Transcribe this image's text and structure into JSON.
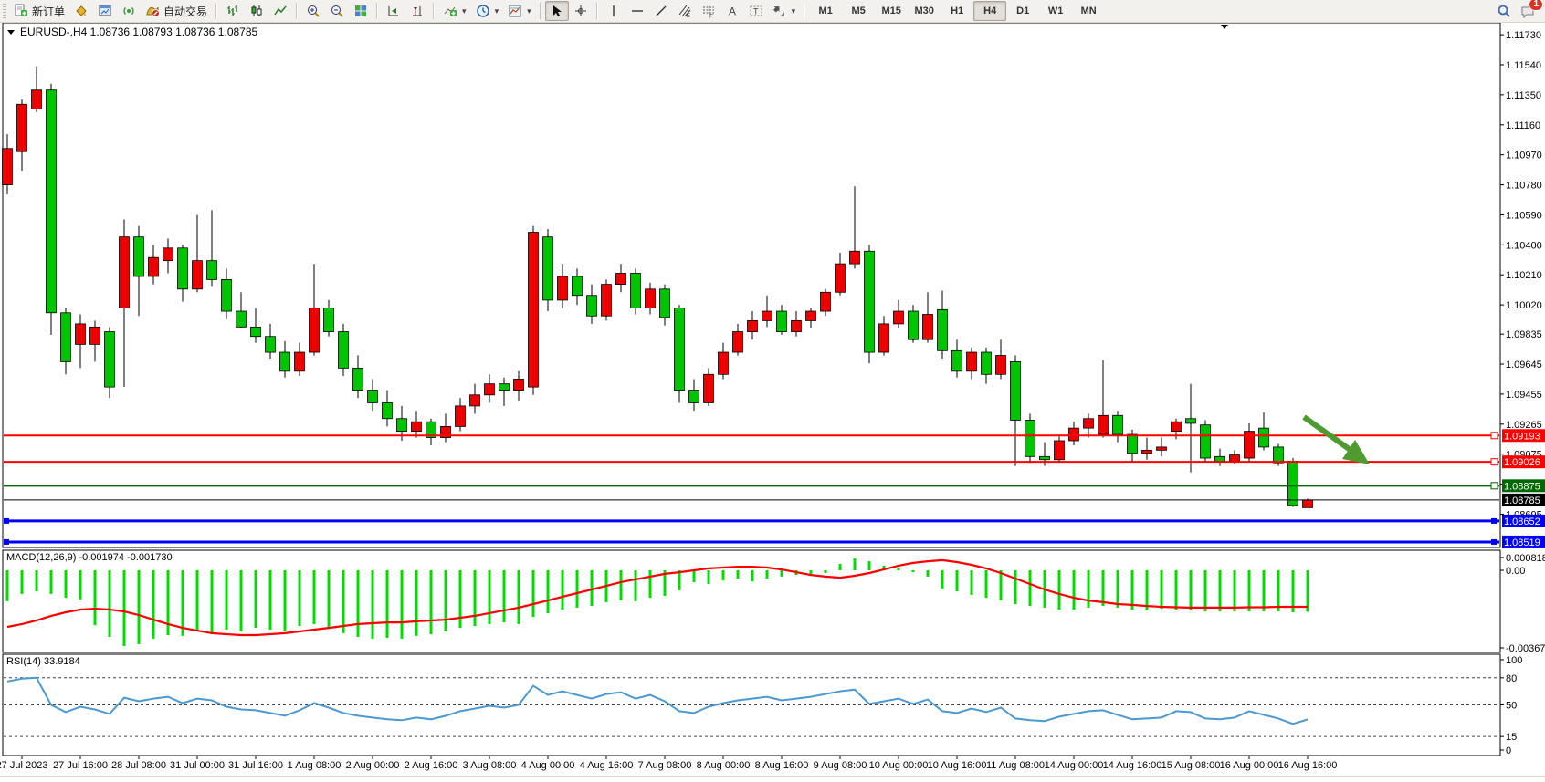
{
  "toolbar": {
    "new_order_label": "新订单",
    "auto_trading_label": "自动交易",
    "timeframes": [
      "M1",
      "M5",
      "M15",
      "M30",
      "H1",
      "H4",
      "D1",
      "W1",
      "MN"
    ],
    "active_timeframe": "H4",
    "notification_count": "1"
  },
  "chart": {
    "symbol_period": "EURUSD-,H4",
    "quote_ohlc": "1.08736 1.08793 1.08736 1.08785",
    "colors": {
      "bull_body": "#ee0000",
      "bear_body": "#00c400",
      "wick": "#000000",
      "resistance_line": "#ff0000",
      "support_line": "#006600",
      "current_price_line": "#000000",
      "target_line": "#0000ff",
      "macd_hist": "#00dd00",
      "macd_signal": "#ff0000",
      "rsi_line": "#4b99d2",
      "arrow": "#4e9b30",
      "badge_text": "#ffffff"
    },
    "price_axis_ticks": [
      "1.11730",
      "1.11540",
      "1.11350",
      "1.11160",
      "1.10970",
      "1.10780",
      "1.10590",
      "1.10400",
      "1.10210",
      "1.10020",
      "1.09835",
      "1.09645",
      "1.09455",
      "1.09265",
      "1.09075",
      "1.08885",
      "1.08695"
    ],
    "h_lines": [
      {
        "price": 1.09193,
        "label": "1.09193",
        "color": "#ff0000",
        "width": 2,
        "handles": "right"
      },
      {
        "price": 1.09026,
        "label": "1.09026",
        "color": "#ff0000",
        "width": 2,
        "handles": "right"
      },
      {
        "price": 1.08875,
        "label": "1.08875",
        "color": "#006600",
        "width": 2,
        "handles": "right"
      },
      {
        "price": 1.08785,
        "label": "1.08785",
        "color": "#000000",
        "width": 1,
        "handles": "none"
      },
      {
        "price": 1.08652,
        "label": "1.08652",
        "color": "#0000ff",
        "width": 3,
        "handles": "both"
      },
      {
        "price": 1.08519,
        "label": "1.08519",
        "color": "#0000ff",
        "width": 3,
        "handles": "both"
      }
    ],
    "candles": [
      [
        1.1078,
        1.111,
        1.1072,
        1.1101
      ],
      [
        1.1099,
        1.1132,
        1.1087,
        1.1129
      ],
      [
        1.1126,
        1.1153,
        1.1124,
        1.1138
      ],
      [
        1.1138,
        1.1142,
        1.0983,
        1.0997
      ],
      [
        1.0997,
        1.1,
        1.0958,
        1.0966
      ],
      [
        1.0977,
        1.0996,
        1.0962,
        1.099
      ],
      [
        1.0977,
        1.0992,
        1.0966,
        1.0988
      ],
      [
        1.0985,
        1.0988,
        1.0943,
        1.095
      ],
      [
        1.1,
        1.1056,
        1.095,
        1.1045
      ],
      [
        1.1045,
        1.1052,
        1.0995,
        1.102
      ],
      [
        1.102,
        1.104,
        1.1015,
        1.1032
      ],
      [
        1.103,
        1.1044,
        1.1022,
        1.1038
      ],
      [
        1.1038,
        1.104,
        1.1004,
        1.1012
      ],
      [
        1.1012,
        1.1059,
        1.101,
        1.103
      ],
      [
        1.103,
        1.1062,
        1.1014,
        1.1018
      ],
      [
        1.1018,
        1.1025,
        1.0993,
        1.0998
      ],
      [
        1.0998,
        1.101,
        1.0987,
        1.0988
      ],
      [
        1.0988,
        1.1,
        1.0978,
        1.0982
      ],
      [
        1.0982,
        1.099,
        1.0968,
        1.0972
      ],
      [
        1.0972,
        1.0979,
        1.0956,
        1.096
      ],
      [
        1.096,
        1.0978,
        1.0957,
        1.0972
      ],
      [
        1.0972,
        1.1028,
        1.097,
        1.1
      ],
      [
        1.1,
        1.1005,
        1.0982,
        1.0985
      ],
      [
        1.0985,
        1.099,
        1.0957,
        1.0962
      ],
      [
        1.0962,
        1.097,
        1.0943,
        1.0948
      ],
      [
        1.0948,
        1.0955,
        1.0935,
        1.094
      ],
      [
        1.094,
        1.0948,
        1.0925,
        1.093
      ],
      [
        1.093,
        1.0938,
        1.0916,
        1.0922
      ],
      [
        1.0922,
        1.0935,
        1.0918,
        1.0928
      ],
      [
        1.0928,
        1.093,
        1.0913,
        1.0918
      ],
      [
        1.0918,
        1.0933,
        1.0915,
        1.0925
      ],
      [
        1.0925,
        1.0943,
        1.0922,
        1.0938
      ],
      [
        1.0938,
        1.0952,
        1.0933,
        1.0945
      ],
      [
        1.0945,
        1.0958,
        1.094,
        1.0952
      ],
      [
        1.0952,
        1.0956,
        1.0938,
        1.0948
      ],
      [
        1.0948,
        1.096,
        1.0941,
        1.0955
      ],
      [
        1.095,
        1.1052,
        1.0945,
        1.1048
      ],
      [
        1.1045,
        1.105,
        1.0998,
        1.1005
      ],
      [
        1.1005,
        1.1028,
        1.1,
        1.102
      ],
      [
        1.102,
        1.1025,
        1.1002,
        1.1008
      ],
      [
        1.1008,
        1.1015,
        1.099,
        1.0995
      ],
      [
        1.0995,
        1.1018,
        1.0992,
        1.1015
      ],
      [
        1.1015,
        1.1028,
        1.101,
        1.1022
      ],
      [
        1.1022,
        1.1025,
        1.0996,
        1.1
      ],
      [
        1.1,
        1.1016,
        1.0996,
        1.1012
      ],
      [
        1.1012,
        1.1015,
        1.0989,
        1.0994
      ],
      [
        1.1,
        1.1002,
        1.094,
        1.0948
      ],
      [
        1.0948,
        1.0955,
        1.0935,
        1.094
      ],
      [
        1.094,
        1.0962,
        1.0938,
        1.0958
      ],
      [
        1.0958,
        1.0978,
        1.0955,
        1.0972
      ],
      [
        1.0972,
        1.099,
        1.097,
        1.0985
      ],
      [
        1.0985,
        1.0998,
        1.098,
        1.0992
      ],
      [
        1.0992,
        1.1008,
        1.0988,
        1.0998
      ],
      [
        1.0998,
        1.1002,
        1.0983,
        1.0985
      ],
      [
        1.0985,
        1.0998,
        1.0982,
        1.0992
      ],
      [
        1.0992,
        1.1,
        1.0987,
        1.0998
      ],
      [
        1.0998,
        1.1012,
        1.0995,
        1.101
      ],
      [
        1.101,
        1.1035,
        1.1008,
        1.1028
      ],
      [
        1.1028,
        1.1077,
        1.1025,
        1.1036
      ],
      [
        1.1036,
        1.104,
        1.0965,
        1.0972
      ],
      [
        1.0972,
        1.0995,
        1.097,
        1.099
      ],
      [
        1.099,
        1.1005,
        1.0987,
        1.0998
      ],
      [
        1.0998,
        1.1002,
        1.0978,
        1.098
      ],
      [
        1.098,
        1.101,
        1.0978,
        1.0996
      ],
      [
        1.0999,
        1.1011,
        1.0968,
        1.0973
      ],
      [
        1.0973,
        1.098,
        1.0956,
        1.096
      ],
      [
        1.096,
        1.0975,
        1.0955,
        1.0972
      ],
      [
        1.0972,
        1.0975,
        1.0952,
        1.0958
      ],
      [
        1.0958,
        1.098,
        1.0955,
        1.097
      ],
      [
        1.0966,
        1.097,
        1.09,
        1.0929
      ],
      [
        1.0929,
        1.0933,
        1.0902,
        1.0906
      ],
      [
        1.0906,
        1.0915,
        1.09,
        1.0904
      ],
      [
        1.0904,
        1.092,
        1.0902,
        1.0916
      ],
      [
        1.0916,
        1.0928,
        1.0913,
        1.0924
      ],
      [
        1.0924,
        1.0933,
        1.0918,
        1.093
      ],
      [
        1.092,
        1.0967,
        1.0918,
        1.0932
      ],
      [
        1.0932,
        1.0935,
        1.0915,
        1.092
      ],
      [
        1.092,
        1.0923,
        1.0903,
        1.0908
      ],
      [
        1.0908,
        1.0918,
        1.0904,
        1.091
      ],
      [
        1.091,
        1.0918,
        1.0906,
        1.0912
      ],
      [
        1.0922,
        1.093,
        1.0917,
        1.0928
      ],
      [
        1.093,
        1.0952,
        1.0896,
        1.0927
      ],
      [
        1.0926,
        1.0929,
        1.0903,
        1.0905
      ],
      [
        1.0906,
        1.0911,
        1.09,
        1.0903
      ],
      [
        1.0903,
        1.091,
        1.0901,
        1.0907
      ],
      [
        1.0905,
        1.0927,
        1.0903,
        1.0922
      ],
      [
        1.0924,
        1.0934,
        1.091,
        1.0912
      ],
      [
        1.0912,
        1.0914,
        1.09,
        1.0902
      ],
      [
        1.0903,
        1.0905,
        1.0874,
        1.0875
      ],
      [
        1.08736,
        1.08793,
        1.08736,
        1.08785
      ]
    ]
  },
  "macd": {
    "label": "MACD(12,26,9)",
    "values_text": "-0.001974 -0.001730",
    "axis_ticks": [
      {
        "label": "0.000818",
        "value": 0.000818
      },
      {
        "label": "0.00",
        "value": 0.0
      },
      {
        "label": "-0.003677",
        "value": -0.003677
      }
    ],
    "hist": [
      -0.00147,
      -0.00112,
      -0.001,
      -0.00112,
      -0.0013,
      -0.00138,
      -0.0026,
      -0.00316,
      -0.00359,
      -0.0035,
      -0.00324,
      -0.00307,
      -0.00311,
      -0.0029,
      -0.00298,
      -0.00281,
      -0.0029,
      -0.00273,
      -0.00281,
      -0.0029,
      -0.00264,
      -0.00255,
      -0.00273,
      -0.00298,
      -0.00316,
      -0.00324,
      -0.0032,
      -0.00324,
      -0.00311,
      -0.00303,
      -0.0029,
      -0.00273,
      -0.00264,
      -0.00255,
      -0.00247,
      -0.00255,
      -0.00221,
      -0.00203,
      -0.00186,
      -0.00177,
      -0.00169,
      -0.00151,
      -0.00143,
      -0.00147,
      -0.0013,
      -0.00121,
      -0.00095,
      -0.00056,
      -0.00065,
      -0.00048,
      -0.00039,
      -0.00052,
      -0.00039,
      -0.0003,
      -0.00022,
      -0.00026,
      -0.00013,
      0.0003,
      0.00056,
      0.00043,
      0.00022,
      0.00013,
      -9e-05,
      -0.0003,
      -0.00087,
      -0.001,
      -0.00117,
      -0.0013,
      -0.00143,
      -0.0016,
      -0.00169,
      -0.00177,
      -0.00186,
      -0.00186,
      -0.00177,
      -0.00169,
      -0.00177,
      -0.00186,
      -0.00186,
      -0.00182,
      -0.00186,
      -0.0019,
      -0.00195,
      -0.00195,
      -0.00195,
      -0.00195,
      -0.00195,
      -0.00195,
      -0.00199,
      -0.00197
    ],
    "signal": [
      -0.00268,
      -0.00255,
      -0.00238,
      -0.00216,
      -0.00199,
      -0.00186,
      -0.00182,
      -0.00186,
      -0.00195,
      -0.00212,
      -0.00234,
      -0.00255,
      -0.00273,
      -0.00286,
      -0.00298,
      -0.00303,
      -0.00307,
      -0.00307,
      -0.00303,
      -0.00298,
      -0.0029,
      -0.00281,
      -0.00273,
      -0.00264,
      -0.00255,
      -0.00251,
      -0.00247,
      -0.00247,
      -0.00242,
      -0.00238,
      -0.00234,
      -0.00225,
      -0.00216,
      -0.00203,
      -0.0019,
      -0.00177,
      -0.0016,
      -0.00143,
      -0.00125,
      -0.00108,
      -0.00091,
      -0.00074,
      -0.00056,
      -0.00043,
      -0.0003,
      -0.00017,
      -9e-05,
      0.0,
      9e-05,
      0.00013,
      0.00017,
      0.00017,
      0.00013,
      4e-05,
      -9e-05,
      -0.00022,
      -0.0003,
      -0.00035,
      -0.00026,
      -0.00013,
      4e-05,
      0.00022,
      0.00035,
      0.00043,
      0.00048,
      0.00039,
      0.00026,
      9e-05,
      -0.00013,
      -0.00039,
      -0.00065,
      -0.00091,
      -0.00112,
      -0.0013,
      -0.00143,
      -0.00151,
      -0.0016,
      -0.00164,
      -0.00169,
      -0.00173,
      -0.00175,
      -0.00177,
      -0.00177,
      -0.00177,
      -0.00177,
      -0.00175,
      -0.00175,
      -0.00173,
      -0.00173,
      -0.00173
    ]
  },
  "rsi": {
    "label": "RSI(14)",
    "value_text": "33.9184",
    "axis_ticks": [
      {
        "label": "100",
        "value": 100
      },
      {
        "label": "80",
        "value": 80
      },
      {
        "label": "50",
        "value": 50
      },
      {
        "label": "15",
        "value": 15
      },
      {
        "label": "0",
        "value": 0
      }
    ],
    "dashed_levels": [
      80,
      50,
      15
    ],
    "values": [
      76,
      79,
      80,
      50,
      42,
      48,
      45,
      40,
      58,
      54,
      57,
      59,
      52,
      57,
      55,
      48,
      45,
      44,
      41,
      38,
      44,
      52,
      47,
      41,
      38,
      36,
      34,
      33,
      36,
      34,
      38,
      43,
      46,
      49,
      47,
      50,
      71,
      61,
      65,
      61,
      57,
      62,
      64,
      57,
      61,
      54,
      43,
      41,
      48,
      52,
      55,
      57,
      59,
      55,
      57,
      59,
      62,
      65,
      67,
      51,
      54,
      57,
      51,
      56,
      43,
      41,
      46,
      42,
      47,
      35,
      33,
      32,
      37,
      40,
      43,
      44,
      39,
      34,
      35,
      36,
      43,
      42,
      35,
      34,
      36,
      43,
      39,
      35,
      29,
      33.9
    ]
  },
  "time_axis": {
    "labels": [
      "27 Jul 2023",
      "27 Jul 16:00",
      "28 Jul 08:00",
      "31 Jul 00:00",
      "31 Jul 16:00",
      "1 Aug 08:00",
      "2 Aug 00:00",
      "2 Aug 16:00",
      "3 Aug 08:00",
      "4 Aug 00:00",
      "4 Aug 16:00",
      "7 Aug 08:00",
      "8 Aug 00:00",
      "8 Aug 16:00",
      "9 Aug 08:00",
      "10 Aug 00:00",
      "10 Aug 16:00",
      "11 Aug 08:00",
      "14 Aug 00:00",
      "14 Aug 16:00",
      "15 Aug 08:00",
      "16 Aug 00:00",
      "16 Aug 16:00"
    ]
  }
}
